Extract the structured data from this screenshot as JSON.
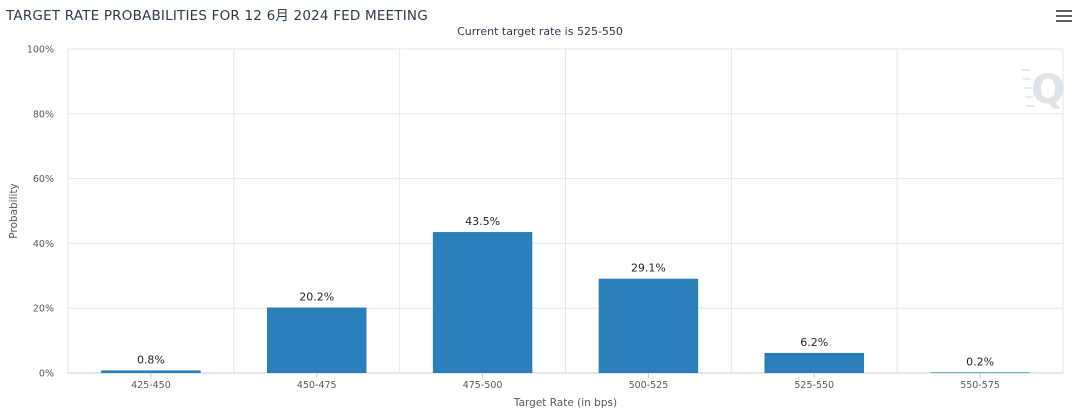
{
  "header": {
    "title": "TARGET RATE PROBABILITIES FOR 12 6月 2024 FED MEETING",
    "subtitle": "Current target rate is 525-550"
  },
  "colors": {
    "bar": "#2a7fba",
    "grid": "#e6e6e6",
    "axis": "#c8ced6",
    "logo": "#dfe4ea"
  },
  "icons": {
    "menu": "hamburger-menu-icon",
    "logo": "quikstrike-q-logo"
  },
  "chart_data": {
    "type": "bar",
    "categories": [
      "425-450",
      "450-475",
      "475-500",
      "500-525",
      "525-550",
      "550-575"
    ],
    "values": [
      0.8,
      20.2,
      43.5,
      29.1,
      6.2,
      0.2
    ],
    "data_labels": [
      "0.8%",
      "20.2%",
      "43.5%",
      "29.1%",
      "6.2%",
      "0.2%"
    ],
    "xlabel": "Target Rate (in bps)",
    "ylabel": "Probability",
    "ylim": [
      0,
      100
    ],
    "yticks": [
      0,
      20,
      40,
      60,
      80,
      100
    ],
    "ytick_labels": [
      "0%",
      "20%",
      "40%",
      "60%",
      "80%",
      "100%"
    ],
    "grid": true,
    "legend": "none"
  }
}
